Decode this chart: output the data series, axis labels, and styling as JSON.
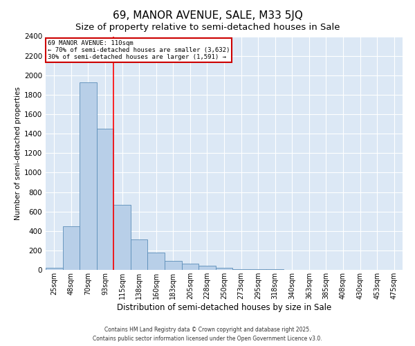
{
  "title": "69, MANOR AVENUE, SALE, M33 5JQ",
  "subtitle": "Size of property relative to semi-detached houses in Sale",
  "xlabel": "Distribution of semi-detached houses by size in Sale",
  "ylabel": "Number of semi-detached properties",
  "categories": [
    "25sqm",
    "48sqm",
    "70sqm",
    "93sqm",
    "115sqm",
    "138sqm",
    "160sqm",
    "183sqm",
    "205sqm",
    "228sqm",
    "250sqm",
    "273sqm",
    "295sqm",
    "318sqm",
    "340sqm",
    "363sqm",
    "385sqm",
    "408sqm",
    "430sqm",
    "453sqm",
    "475sqm"
  ],
  "values": [
    20,
    450,
    1930,
    1450,
    670,
    310,
    180,
    95,
    65,
    40,
    20,
    10,
    5,
    5,
    2,
    2,
    2,
    2,
    2,
    2,
    2
  ],
  "bar_color": "#b8cfe8",
  "bar_edge_color": "#5b8db8",
  "red_line_index": 4,
  "annotation_title": "69 MANOR AVENUE: 110sqm",
  "annotation_line1": "← 70% of semi-detached houses are smaller (3,632)",
  "annotation_line2": "30% of semi-detached houses are larger (1,591) →",
  "ylim": [
    0,
    2400
  ],
  "yticks": [
    0,
    200,
    400,
    600,
    800,
    1000,
    1200,
    1400,
    1600,
    1800,
    2000,
    2200,
    2400
  ],
  "footer_line1": "Contains HM Land Registry data © Crown copyright and database right 2025.",
  "footer_line2": "Contains public sector information licensed under the Open Government Licence v3.0.",
  "fig_bg_color": "#ffffff",
  "ax_bg_color": "#dce8f5",
  "title_fontsize": 11,
  "annotation_box_color": "#ffffff",
  "annotation_box_edge": "#cc0000"
}
